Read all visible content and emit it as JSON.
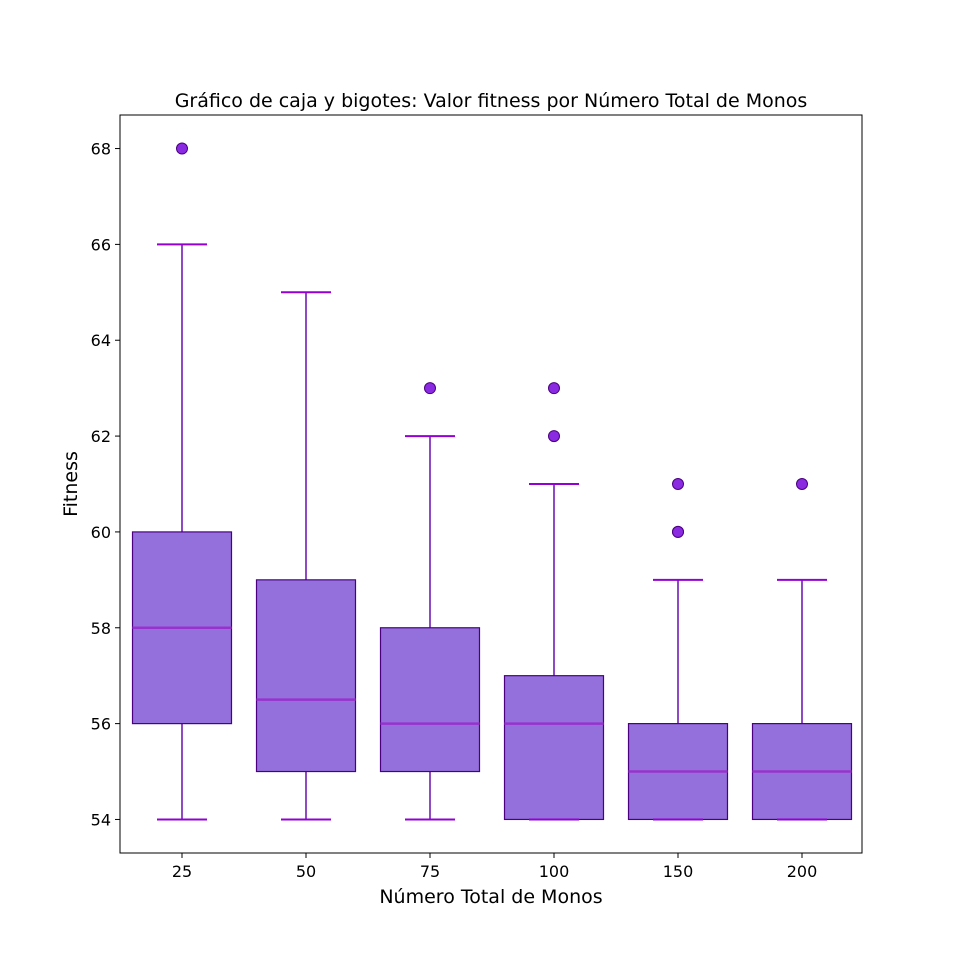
{
  "chart_data": {
    "type": "box",
    "title": "Gráfico de caja y bigotes: Valor fitness por Número Total de Monos",
    "xlabel": "Número Total de Monos",
    "ylabel": "Fitness",
    "categories": [
      "25",
      "50",
      "75",
      "100",
      "150",
      "200"
    ],
    "yticks": [
      "54",
      "56",
      "58",
      "60",
      "62",
      "64",
      "66",
      "68"
    ],
    "ylim": [
      53.3,
      68.7
    ],
    "grid": false,
    "colors": {
      "box_fill": "#9370db",
      "box_edge": "#4b0082",
      "median": "#9932cc",
      "whisker": "#6a0dad",
      "cap": "#9400d3",
      "flier_fill": "#8a2be2",
      "flier_edge": "#4b0082"
    },
    "boxes": [
      {
        "category": "25",
        "whisker_low": 54,
        "q1": 56,
        "median": 58,
        "q3": 60,
        "whisker_high": 66,
        "outliers": [
          68
        ]
      },
      {
        "category": "50",
        "whisker_low": 54,
        "q1": 55,
        "median": 56.5,
        "q3": 59,
        "whisker_high": 65,
        "outliers": []
      },
      {
        "category": "75",
        "whisker_low": 54,
        "q1": 55,
        "median": 56,
        "q3": 58,
        "whisker_high": 62,
        "outliers": [
          63
        ]
      },
      {
        "category": "100",
        "whisker_low": 54,
        "q1": 54,
        "median": 56,
        "q3": 57,
        "whisker_high": 61,
        "outliers": [
          62,
          63
        ]
      },
      {
        "category": "150",
        "whisker_low": 54,
        "q1": 54,
        "median": 55,
        "q3": 56,
        "whisker_high": 59,
        "outliers": [
          60,
          60,
          61
        ]
      },
      {
        "category": "200",
        "whisker_low": 54,
        "q1": 54,
        "median": 55,
        "q3": 56,
        "whisker_high": 59,
        "outliers": [
          61
        ]
      }
    ]
  }
}
